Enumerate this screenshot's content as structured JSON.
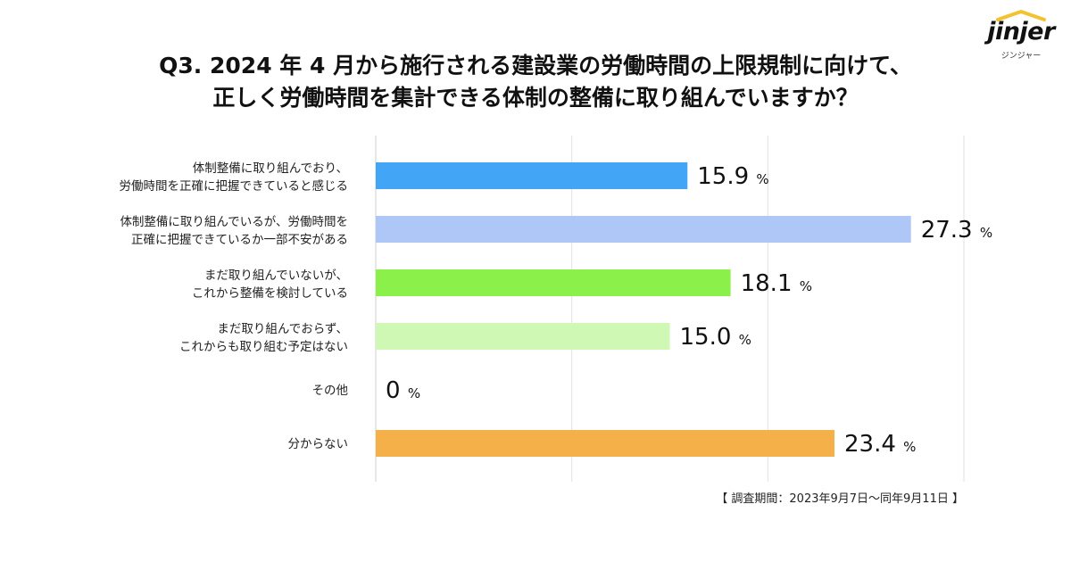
{
  "title": {
    "line1": "Q3. 2024 年 4 月から施行される建設業の労働時間の上限規制に向けて、",
    "line2": "正しく労働時間を集計できる体制の整備に取り組んでいますか？"
  },
  "logo": {
    "word": "jinjer",
    "sub": "ジンジャー"
  },
  "note": "【 調査期間：2023年9月7日〜同年9月11日 】",
  "chart_data": {
    "type": "bar",
    "orientation": "horizontal",
    "unit": "%",
    "xlim": [
      0,
      30
    ],
    "grid": true,
    "categories": [
      [
        "体制整備に取り組んでおり、",
        "労働時間を正確に把握できていると感じる"
      ],
      [
        "体制整備に取り組んでいるが、労働時間を",
        "正確に把握できているか一部不安がある"
      ],
      [
        "まだ取り組んでいないが、",
        "これから整備を検討している"
      ],
      [
        "まだ取り組んでおらず、",
        "これからも取り組む予定はない"
      ],
      [
        "その他"
      ],
      [
        "分からない"
      ]
    ],
    "values": [
      15.9,
      27.3,
      18.1,
      15.0,
      0,
      23.4
    ],
    "value_labels": [
      "15.9",
      "27.3",
      "18.1",
      "15.0",
      "0",
      "23.4"
    ],
    "colors": [
      "#42a5f5",
      "#aec7f7",
      "#8cf04a",
      "#cff8b4",
      "#cccccc",
      "#f5b04a"
    ]
  }
}
